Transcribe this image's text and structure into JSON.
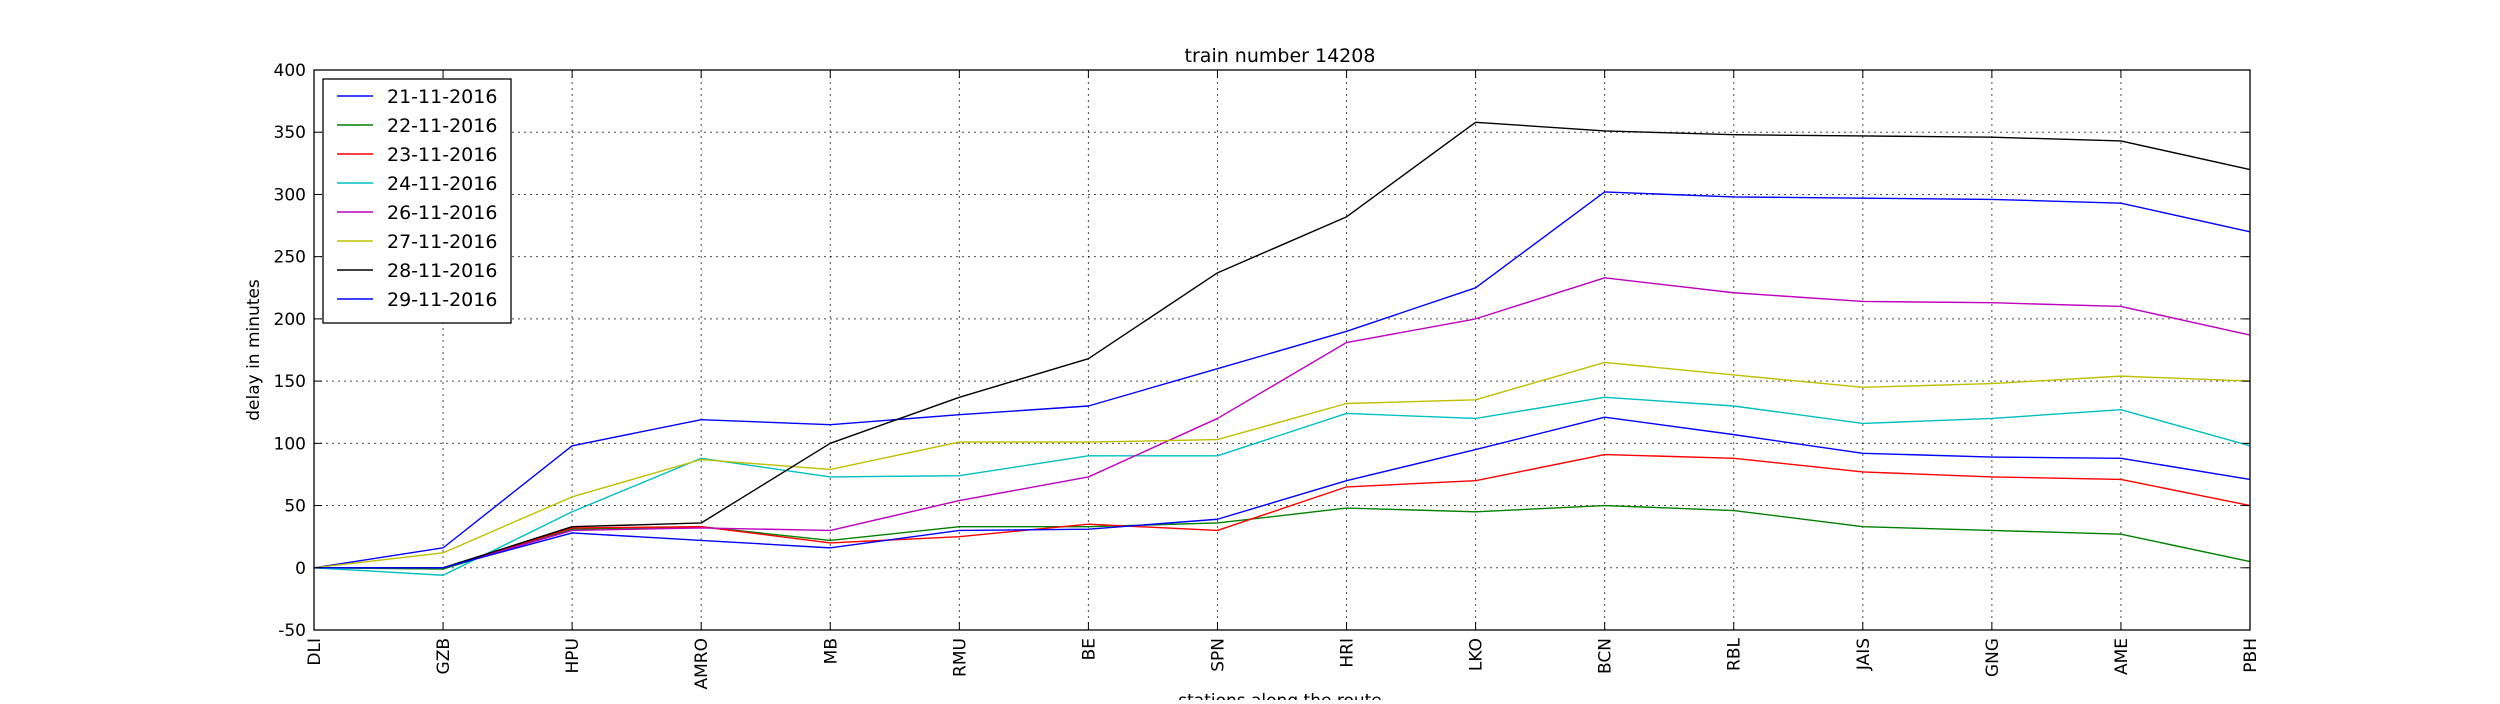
{
  "chart_data": {
    "type": "line",
    "title": "train number 14208",
    "xlabel": "stations along the route",
    "ylabel": "delay in minutes",
    "categories": [
      "DLI",
      "GZB",
      "HPU",
      "AMRO",
      "MB",
      "RMU",
      "BE",
      "SPN",
      "HRI",
      "LKO",
      "BCN",
      "RBL",
      "JAIS",
      "GNG",
      "AME",
      "PBH"
    ],
    "ylim": [
      -50,
      400
    ],
    "yticks": [
      -50,
      0,
      50,
      100,
      150,
      200,
      250,
      300,
      350,
      400
    ],
    "grid": true,
    "legend_position": "top-left",
    "series": [
      {
        "name": "21-11-2016",
        "color": "#0000ff",
        "values": [
          0,
          16,
          98,
          119,
          115,
          123,
          130,
          160,
          190,
          225,
          302,
          298,
          297,
          296,
          293,
          270
        ]
      },
      {
        "name": "22-11-2016",
        "color": "#008000",
        "values": [
          0,
          -1,
          31,
          33,
          22,
          33,
          33,
          36,
          48,
          45,
          50,
          46,
          33,
          30,
          27,
          5
        ]
      },
      {
        "name": "23-11-2016",
        "color": "#ff0000",
        "values": [
          0,
          0,
          32,
          33,
          20,
          25,
          35,
          30,
          65,
          70,
          91,
          88,
          77,
          73,
          71,
          50
        ]
      },
      {
        "name": "24-11-2016",
        "color": "#00bfbf",
        "values": [
          0,
          -6,
          45,
          88,
          73,
          74,
          90,
          90,
          124,
          120,
          137,
          130,
          116,
          120,
          127,
          98
        ]
      },
      {
        "name": "26-11-2016",
        "color": "#bf00bf",
        "values": [
          0,
          0,
          30,
          32,
          30,
          54,
          73,
          120,
          181,
          200,
          233,
          221,
          214,
          213,
          210,
          187
        ]
      },
      {
        "name": "27-11-2016",
        "color": "#bfbf00",
        "values": [
          0,
          12,
          57,
          87,
          79,
          101,
          101,
          103,
          132,
          135,
          165,
          155,
          145,
          148,
          154,
          150
        ]
      },
      {
        "name": "28-11-2016",
        "color": "#000000",
        "values": [
          0,
          0,
          33,
          36,
          100,
          137,
          168,
          237,
          282,
          358,
          351,
          348,
          347,
          346,
          343,
          320
        ]
      },
      {
        "name": "29-11-2016",
        "color": "#0000ff",
        "values": [
          0,
          0,
          28,
          22,
          16,
          30,
          31,
          39,
          70,
          95,
          121,
          107,
          92,
          89,
          88,
          71
        ]
      }
    ]
  }
}
